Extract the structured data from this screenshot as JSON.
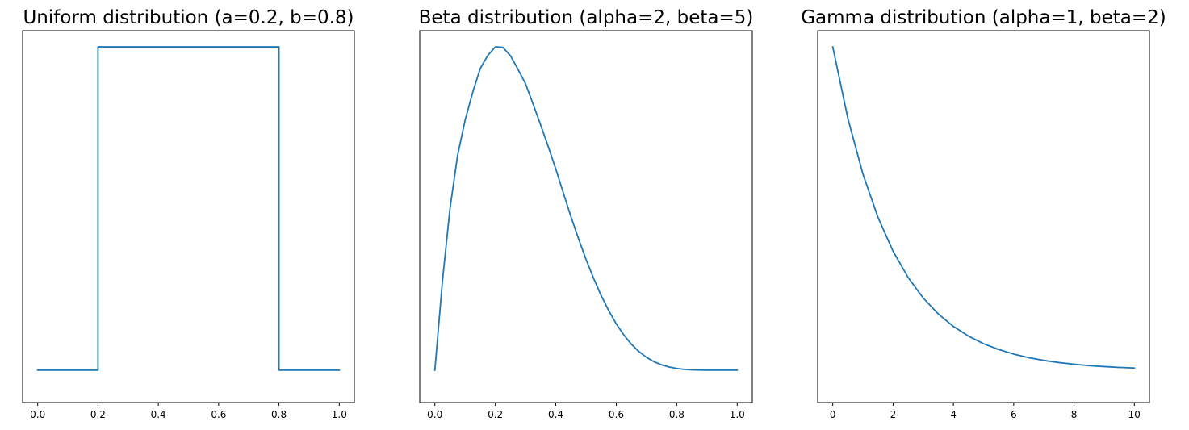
{
  "chart_data": [
    {
      "type": "line",
      "title": "Uniform distribution (a=0.2, b=0.8)",
      "xlabel": "",
      "ylabel": "",
      "xlim": [
        -0.05,
        1.05
      ],
      "ylim": [
        -0.1,
        1.05
      ],
      "x_ticks": [
        0.0,
        0.2,
        0.4,
        0.6,
        0.8,
        1.0
      ],
      "x_tick_labels": [
        "0.0",
        "0.2",
        "0.4",
        "0.6",
        "0.8",
        "1.0"
      ],
      "y_ticks_visible": false,
      "grid": false,
      "color": "#1f77b4",
      "series": [
        {
          "x": [
            0.0,
            0.2,
            0.2,
            0.8,
            0.8,
            1.0
          ],
          "y": [
            0.0,
            0.0,
            1.0,
            1.0,
            0.0,
            0.0
          ]
        }
      ]
    },
    {
      "type": "line",
      "title": "Beta distribution (alpha=2, beta=5)",
      "xlabel": "",
      "ylabel": "",
      "xlim": [
        -0.05,
        1.05
      ],
      "ylim": [
        -0.1,
        1.05
      ],
      "x_ticks": [
        0.0,
        0.2,
        0.4,
        0.6,
        0.8,
        1.0
      ],
      "x_tick_labels": [
        "0.0",
        "0.2",
        "0.4",
        "0.6",
        "0.8",
        "1.0"
      ],
      "y_ticks_visible": false,
      "grid": false,
      "color": "#1f77b4",
      "series": [
        {
          "x": [
            0.0,
            0.025,
            0.05,
            0.075,
            0.1,
            0.125,
            0.15,
            0.175,
            0.2,
            0.225,
            0.25,
            0.275,
            0.3,
            0.325,
            0.35,
            0.375,
            0.4,
            0.425,
            0.45,
            0.475,
            0.5,
            0.525,
            0.55,
            0.575,
            0.6,
            0.625,
            0.65,
            0.675,
            0.7,
            0.725,
            0.75,
            0.775,
            0.8,
            0.825,
            0.85,
            0.875,
            0.9,
            0.925,
            0.95,
            0.975,
            1.0
          ],
          "y": [
            0.0,
            0.2746,
            0.4997,
            0.6631,
            0.7732,
            0.8588,
            0.9326,
            0.9733,
            1.0,
            0.9984,
            0.9727,
            0.9303,
            0.8859,
            0.8227,
            0.7581,
            0.6918,
            0.6221,
            0.5483,
            0.4751,
            0.4072,
            0.3427,
            0.2843,
            0.2311,
            0.1844,
            0.1434,
            0.1091,
            0.0805,
            0.0576,
            0.0398,
            0.0263,
            0.0165,
            0.0097,
            0.0053,
            0.0026,
            0.0011,
            0.0004,
            0.0001,
            0.0,
            0.0,
            0.0,
            0.0
          ]
        }
      ]
    },
    {
      "type": "line",
      "title": "Gamma distribution (alpha=1, beta=2)",
      "xlabel": "",
      "ylabel": "",
      "xlim": [
        -0.5,
        10.5
      ],
      "ylim": [
        -0.05,
        0.525
      ],
      "x_ticks": [
        0,
        2,
        4,
        6,
        8,
        10
      ],
      "x_tick_labels": [
        "0",
        "2",
        "4",
        "6",
        "8",
        "10"
      ],
      "y_ticks_visible": false,
      "grid": false,
      "color": "#1f77b4",
      "series": [
        {
          "x": [
            0.0,
            0.5,
            1.0,
            1.5,
            2.0,
            2.5,
            3.0,
            3.5,
            4.0,
            4.5,
            5.0,
            5.5,
            6.0,
            6.5,
            7.0,
            7.5,
            8.0,
            8.5,
            9.0,
            9.5,
            10.0
          ],
          "y": [
            0.5,
            0.3894,
            0.3033,
            0.2362,
            0.1839,
            0.1433,
            0.1116,
            0.0869,
            0.0677,
            0.0527,
            0.041,
            0.032,
            0.0249,
            0.0194,
            0.0151,
            0.0118,
            0.0092,
            0.0071,
            0.0056,
            0.0043,
            0.0034
          ]
        }
      ]
    }
  ]
}
